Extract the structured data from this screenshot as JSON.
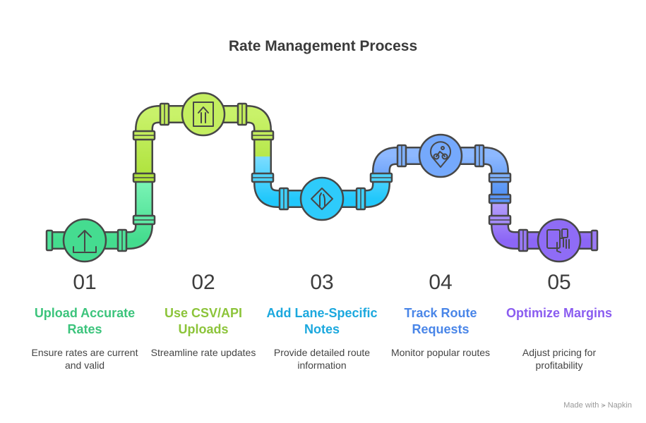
{
  "title": "Rate Management Process",
  "steps": [
    {
      "number": "01",
      "title": "Upload Accurate Rates",
      "description": "Ensure rates are current and valid",
      "color": "#3cc47c",
      "pipe_color": "#4fe39a",
      "icon": "upload-icon"
    },
    {
      "number": "02",
      "title": "Use CSV/API Uploads",
      "description": "Streamline rate updates",
      "color": "#8cc43a",
      "pipe_color": "#c2ec5c",
      "icon": "merge-arrow-up-sign-icon"
    },
    {
      "number": "03",
      "title": "Add Lane-Specific Notes",
      "description": "Provide detailed route information",
      "color": "#1ba8de",
      "pipe_color": "#3fd0fb",
      "icon": "lane-merge-sign-icon"
    },
    {
      "number": "04",
      "title": "Track Route Requests",
      "description": "Monitor popular routes",
      "color": "#4a86e8",
      "pipe_color": "#6fa6fb",
      "icon": "cyclist-location-pin-icon"
    },
    {
      "number": "05",
      "title": "Optimize Margins",
      "description": "Adjust pricing for profitability",
      "color": "#8a5cf0",
      "pipe_color": "#9a7af6",
      "icon": "devices-touch-icon"
    }
  ],
  "footer": {
    "label": "Made with",
    "brand": "Napkin"
  }
}
